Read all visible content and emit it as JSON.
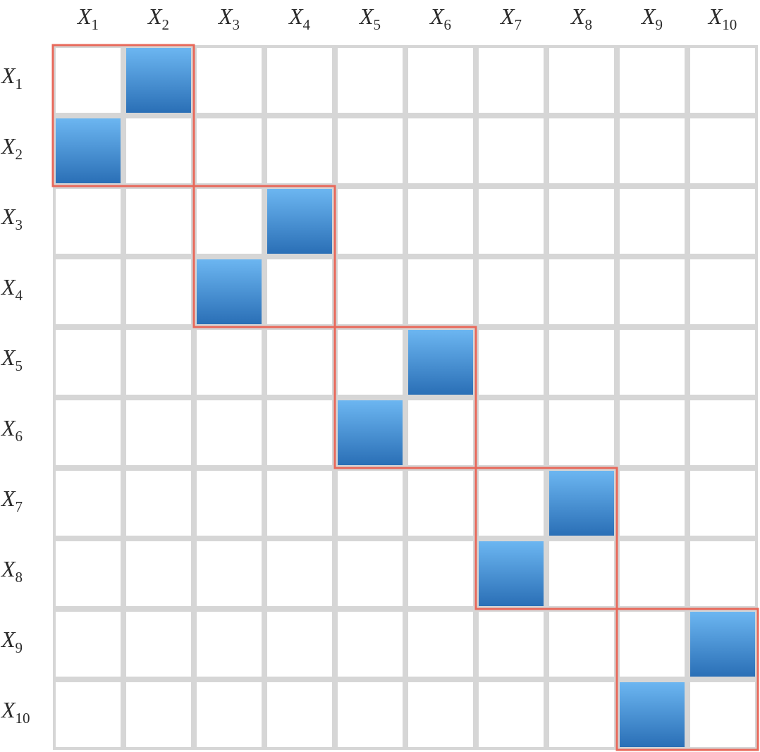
{
  "chart_data": {
    "type": "heatmap",
    "variable_symbol": "X",
    "x_labels": [
      "1",
      "2",
      "3",
      "4",
      "5",
      "6",
      "7",
      "8",
      "9",
      "10"
    ],
    "y_labels": [
      "1",
      "2",
      "3",
      "4",
      "5",
      "6",
      "7",
      "8",
      "9",
      "10"
    ],
    "matrix": [
      [
        0,
        1,
        0,
        0,
        0,
        0,
        0,
        0,
        0,
        0
      ],
      [
        1,
        0,
        0,
        0,
        0,
        0,
        0,
        0,
        0,
        0
      ],
      [
        0,
        0,
        0,
        1,
        0,
        0,
        0,
        0,
        0,
        0
      ],
      [
        0,
        0,
        1,
        0,
        0,
        0,
        0,
        0,
        0,
        0
      ],
      [
        0,
        0,
        0,
        0,
        0,
        1,
        0,
        0,
        0,
        0
      ],
      [
        0,
        0,
        0,
        0,
        1,
        0,
        0,
        0,
        0,
        0
      ],
      [
        0,
        0,
        0,
        0,
        0,
        0,
        0,
        1,
        0,
        0
      ],
      [
        0,
        0,
        0,
        0,
        0,
        0,
        1,
        0,
        0,
        0
      ],
      [
        0,
        0,
        0,
        0,
        0,
        0,
        0,
        0,
        0,
        1
      ],
      [
        0,
        0,
        0,
        0,
        0,
        0,
        0,
        0,
        1,
        0
      ]
    ],
    "blocks": [
      {
        "start": 1,
        "end": 2
      },
      {
        "start": 3,
        "end": 4
      },
      {
        "start": 5,
        "end": 6
      },
      {
        "start": 7,
        "end": 8
      },
      {
        "start": 9,
        "end": 10
      }
    ],
    "x_axis_position": "top",
    "y_axis_position": "left",
    "grid": true,
    "legend": "none",
    "title": "",
    "xlabel": "",
    "ylabel": ""
  },
  "colors": {
    "cell_fill_light": "#6cb6f1",
    "cell_fill_dark": "#2a6fb6",
    "grid_line": "#d6d6d6",
    "block_outline": "#e8685a",
    "empty_cell": "#ffffff",
    "label_text": "#2b2b2b"
  }
}
